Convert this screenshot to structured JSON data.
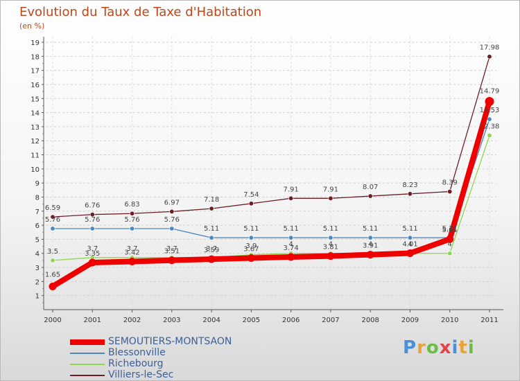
{
  "chart_data": {
    "type": "line",
    "title": "Evolution du Taux de Taxe d'Habitation",
    "subtitle": "(en %)",
    "xlabel": "",
    "ylabel": "",
    "ylim": [
      0,
      19
    ],
    "yticks": [
      "1",
      "2",
      "3",
      "4",
      "5",
      "6",
      "7",
      "8",
      "9",
      "10",
      "11",
      "12",
      "13",
      "14",
      "15",
      "16",
      "17",
      "18",
      "19"
    ],
    "x": [
      "2000",
      "2001",
      "2002",
      "2003",
      "2004",
      "2005",
      "2006",
      "2007",
      "2008",
      "2009",
      "2010",
      "2011"
    ],
    "grid": true,
    "series": [
      {
        "name": "SEMOUTIERS-MONTSAON",
        "color": "#ee0000",
        "values": [
          1.65,
          3.35,
          3.42,
          3.51,
          3.59,
          3.67,
          3.74,
          3.81,
          3.91,
          4.01,
          5.01,
          14.79
        ],
        "labels": [
          "1.65",
          "3.35",
          "3.42",
          "3.51",
          "3.59",
          "3.67",
          "3.74",
          "3.81",
          "3.91",
          "4.01",
          "5.01",
          "14.79"
        ]
      },
      {
        "name": "Blessonville",
        "color": "#4a88c2",
        "values": [
          5.76,
          5.76,
          5.76,
          5.76,
          5.11,
          5.11,
          5.11,
          5.11,
          5.11,
          5.11,
          5.11,
          13.53
        ],
        "labels": [
          "5.76",
          "5.76",
          "5.76",
          "5.76",
          "5.11",
          "5.11",
          "5.11",
          "5.11",
          "5.11",
          "5.11",
          "5.11",
          "13.53"
        ]
      },
      {
        "name": "Richebourg",
        "color": "#8fd64c",
        "values": [
          3.5,
          3.7,
          3.7,
          3.7,
          3.7,
          3.9,
          4,
          4,
          4,
          4,
          4,
          12.38
        ],
        "labels": [
          "3.5",
          "3.7",
          "3.7",
          "3.7",
          "3.7",
          "3.9",
          "4",
          "4",
          "4",
          "4",
          "4",
          "12.38"
        ]
      },
      {
        "name": "Villiers-le-Sec",
        "color": "#6b1e24",
        "values": [
          6.59,
          6.76,
          6.83,
          6.97,
          7.18,
          7.54,
          7.91,
          7.91,
          8.07,
          8.23,
          8.39,
          17.98
        ],
        "labels": [
          "6.59",
          "6.76",
          "6.83",
          "6.97",
          "7.18",
          "7.54",
          "7.91",
          "7.91",
          "8.07",
          "8.23",
          "8.39",
          "17.98"
        ]
      }
    ]
  },
  "brand": {
    "letters": [
      "P",
      "r",
      "o",
      "x",
      "i",
      "t",
      "i"
    ],
    "colors": [
      "#4a90d9",
      "#e8a23a",
      "#6cbd45",
      "#e04646",
      "#4a90d9",
      "#e8a23a",
      "#6cbd45"
    ]
  }
}
